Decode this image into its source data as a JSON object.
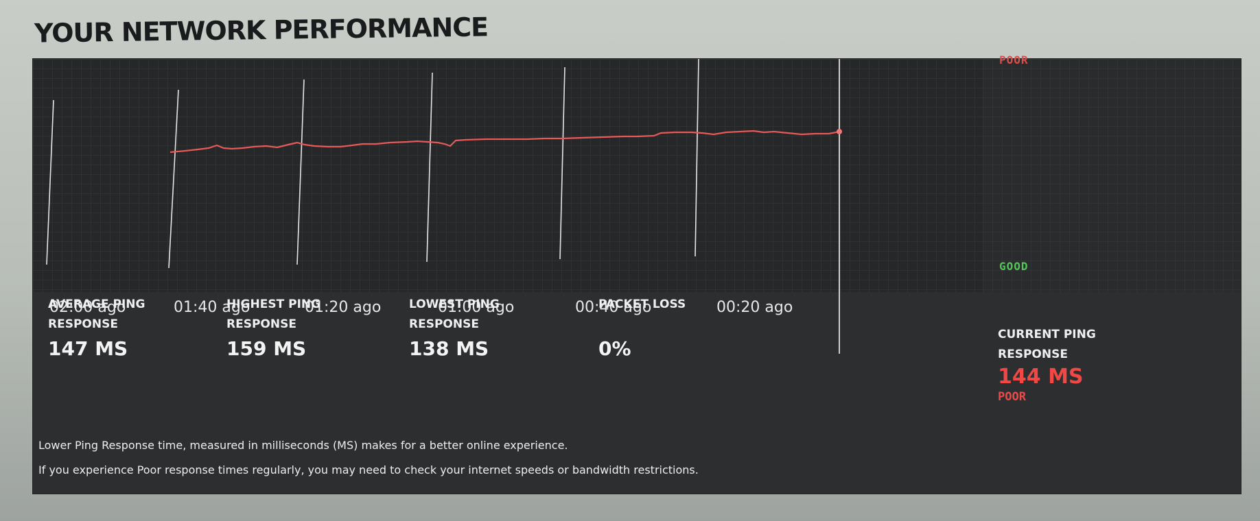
{
  "header": {
    "title": "YOUR NETWORK PERFORMANCE"
  },
  "graph": {
    "scale": {
      "top_label": "POOR",
      "bottom_label": "GOOD"
    },
    "time_labels": [
      "02:00 ago",
      "01:40 ago",
      "01:20 ago",
      "01:00 ago",
      "00:40 ago",
      "00:20 ago"
    ],
    "line_color": "#e85a5a",
    "poor_color": "#d9504e",
    "good_color": "#53c65a"
  },
  "stats": {
    "average": {
      "label": "AVERAGE PING RESPONSE",
      "value": "147 MS"
    },
    "highest": {
      "label": "HIGHEST PING RESPONSE",
      "value": "159 MS"
    },
    "lowest": {
      "label": "LOWEST PING RESPONSE",
      "value": "138 MS"
    },
    "packet_loss": {
      "label": "PACKET LOSS",
      "value": "0%"
    },
    "current": {
      "label": "CURRENT PING RESPONSE",
      "value": "144 MS",
      "rating": "POOR"
    }
  },
  "notes": [
    "Lower Ping Response time, measured in milliseconds (MS) makes for a better online experience.",
    "If you experience Poor response times regularly, you may need to check your internet speeds or bandwidth restrictions."
  ]
}
